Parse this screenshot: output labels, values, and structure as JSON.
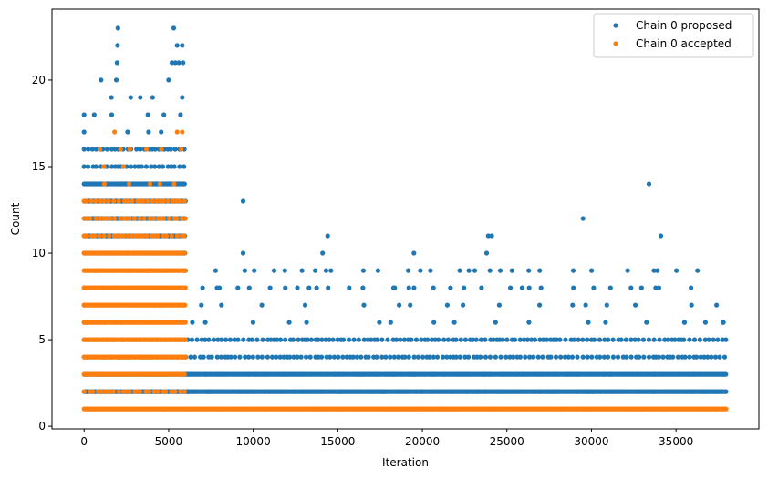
{
  "chart_data": {
    "type": "scatter",
    "title": "",
    "xlabel": "Iteration",
    "ylabel": "Count",
    "xlim": [
      -1900,
      39900
    ],
    "ylim": [
      -0.15,
      24.1
    ],
    "xticks": [
      0,
      5000,
      10000,
      15000,
      20000,
      25000,
      30000,
      35000
    ],
    "yticks": [
      0,
      5,
      10,
      15,
      20
    ],
    "grid": false,
    "legend_position": "top-right",
    "series": [
      {
        "name": "Chain 0 proposed",
        "color": "#1f77b4",
        "bands": [
          {
            "y": 2,
            "x0": 0,
            "x1": 38000,
            "density": "dense"
          },
          {
            "y": 3,
            "x0": 0,
            "x1": 38000,
            "density": "dense"
          },
          {
            "y": 4,
            "x0": 0,
            "x1": 38000,
            "density": "medium"
          },
          {
            "y": 5,
            "x0": 0,
            "x1": 38000,
            "density": "medium"
          },
          {
            "y": 6,
            "x0": 0,
            "x1": 38000,
            "density": "sparse"
          },
          {
            "y": 7,
            "x0": 0,
            "x1": 38000,
            "density": "sparse"
          },
          {
            "y": 8,
            "x0": 0,
            "x1": 38000,
            "density": "sparse"
          },
          {
            "y": 9,
            "x0": 0,
            "x1": 38000,
            "density": "sparse"
          },
          {
            "y": 10,
            "x0": 0,
            "x1": 6000,
            "density": "dense"
          },
          {
            "y": 11,
            "x0": 0,
            "x1": 6000,
            "density": "dense"
          },
          {
            "y": 12,
            "x0": 0,
            "x1": 6000,
            "density": "dense"
          },
          {
            "y": 13,
            "x0": 0,
            "x1": 6000,
            "density": "dense"
          },
          {
            "y": 14,
            "x0": 0,
            "x1": 6000,
            "density": "dense"
          },
          {
            "y": 15,
            "x0": 0,
            "x1": 6000,
            "density": "medium"
          },
          {
            "y": 16,
            "x0": 0,
            "x1": 6000,
            "density": "medium"
          },
          {
            "y": 17,
            "x0": 0,
            "x1": 6000,
            "density": "sparse"
          },
          {
            "y": 18,
            "x0": 0,
            "x1": 6000,
            "density": "sparse"
          },
          {
            "y": 19,
            "x0": 0,
            "x1": 6000,
            "density": "sparse"
          }
        ],
        "points": [
          {
            "x": 1900,
            "y": 20
          },
          {
            "x": 1950,
            "y": 21
          },
          {
            "x": 1980,
            "y": 22
          },
          {
            "x": 2000,
            "y": 23
          },
          {
            "x": 1000,
            "y": 20
          },
          {
            "x": 5000,
            "y": 20
          },
          {
            "x": 5200,
            "y": 21
          },
          {
            "x": 5300,
            "y": 23
          },
          {
            "x": 5400,
            "y": 21
          },
          {
            "x": 5600,
            "y": 21
          },
          {
            "x": 5500,
            "y": 22
          },
          {
            "x": 5800,
            "y": 22
          },
          {
            "x": 5850,
            "y": 21
          },
          {
            "x": 9400,
            "y": 13
          },
          {
            "x": 9400,
            "y": 10
          },
          {
            "x": 9500,
            "y": 9
          },
          {
            "x": 14100,
            "y": 10
          },
          {
            "x": 14400,
            "y": 11
          },
          {
            "x": 14300,
            "y": 9
          },
          {
            "x": 19500,
            "y": 10
          },
          {
            "x": 18300,
            "y": 8
          },
          {
            "x": 19200,
            "y": 8
          },
          {
            "x": 23100,
            "y": 9
          },
          {
            "x": 23800,
            "y": 10
          },
          {
            "x": 23900,
            "y": 11
          },
          {
            "x": 24100,
            "y": 11
          },
          {
            "x": 23500,
            "y": 8
          },
          {
            "x": 29500,
            "y": 12
          },
          {
            "x": 33400,
            "y": 14
          },
          {
            "x": 34100,
            "y": 11
          },
          {
            "x": 33700,
            "y": 9
          },
          {
            "x": 33900,
            "y": 9
          },
          {
            "x": 33800,
            "y": 8
          },
          {
            "x": 8000,
            "y": 8
          },
          {
            "x": 13300,
            "y": 8
          },
          {
            "x": 24000,
            "y": 9
          },
          {
            "x": 25900,
            "y": 8
          },
          {
            "x": 37800,
            "y": 6
          },
          {
            "x": 35500,
            "y": 6
          }
        ]
      },
      {
        "name": "Chain 0 accepted",
        "color": "#ff7f0e",
        "bands": [
          {
            "y": 1,
            "x0": 0,
            "x1": 38000,
            "density": "dense"
          },
          {
            "y": 2,
            "x0": 0,
            "x1": 6000,
            "density": "medium"
          },
          {
            "y": 3,
            "x0": 0,
            "x1": 6000,
            "density": "dense"
          },
          {
            "y": 4,
            "x0": 0,
            "x1": 6000,
            "density": "dense"
          },
          {
            "y": 5,
            "x0": 0,
            "x1": 6000,
            "density": "dense"
          },
          {
            "y": 6,
            "x0": 0,
            "x1": 6000,
            "density": "dense"
          },
          {
            "y": 7,
            "x0": 0,
            "x1": 6000,
            "density": "dense"
          },
          {
            "y": 8,
            "x0": 0,
            "x1": 6000,
            "density": "dense"
          },
          {
            "y": 9,
            "x0": 0,
            "x1": 6000,
            "density": "dense"
          },
          {
            "y": 10,
            "x0": 0,
            "x1": 6000,
            "density": "dense"
          },
          {
            "y": 11,
            "x0": 0,
            "x1": 6000,
            "density": "medium"
          },
          {
            "y": 12,
            "x0": 0,
            "x1": 6000,
            "density": "medium"
          },
          {
            "y": 13,
            "x0": 0,
            "x1": 6000,
            "density": "medium"
          },
          {
            "y": 14,
            "x0": 0,
            "x1": 6000,
            "density": "sparse"
          },
          {
            "y": 15,
            "x0": 0,
            "x1": 6000,
            "density": "sparse"
          },
          {
            "y": 16,
            "x0": 0,
            "x1": 6000,
            "density": "sparse"
          }
        ],
        "points": [
          {
            "x": 1800,
            "y": 17
          },
          {
            "x": 5500,
            "y": 17
          },
          {
            "x": 2700,
            "y": 16
          },
          {
            "x": 5800,
            "y": 17
          }
        ]
      }
    ]
  }
}
